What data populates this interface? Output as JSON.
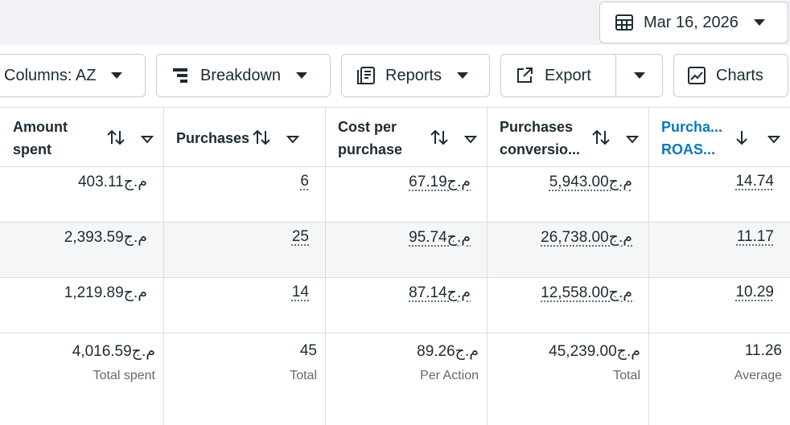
{
  "date_picker": {
    "label": "Mar 16, 2026"
  },
  "toolbar": {
    "buttons": [
      "Columns: AZ",
      "Breakdown",
      "Reports",
      "Export",
      "Charts"
    ]
  },
  "table": {
    "headers": [
      "Amount spent",
      "Purchases",
      "Cost per purchase",
      "Purchases conversio...",
      "Purcha... ROAS..."
    ],
    "rows": [
      [
        "403.11ج.م",
        "6",
        "67.19ج.م",
        "5,943.00ج.م",
        "14.74"
      ],
      [
        "2,393.59ج.م",
        "25",
        "95.74ج.م",
        "26,738.00ج.م",
        "11.17"
      ],
      [
        "1,219.89ج.م",
        "14",
        "87.14ج.م",
        "12,558.00ج.م",
        "10.29"
      ]
    ],
    "summary": {
      "values": [
        "4,016.59ج.م",
        "45",
        "89.26ج.م",
        "45,239.00ج.م",
        "11.26"
      ],
      "labels": [
        "Total spent",
        "Total",
        "Per Action",
        "Total",
        "Average"
      ]
    }
  }
}
